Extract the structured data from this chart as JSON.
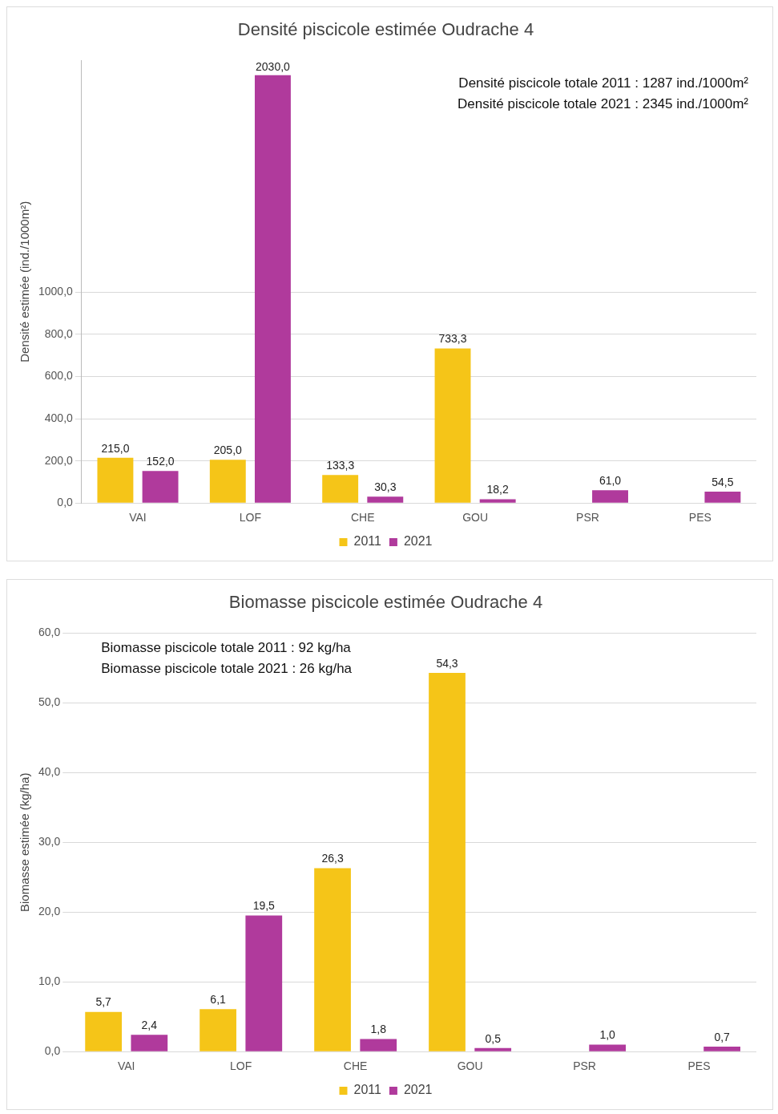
{
  "chart_data": [
    {
      "type": "bar",
      "title": "Densité piscicole estimée Oudrache 4",
      "ylabel": "Densité estimée (ind./1000m²)",
      "categories": [
        "VAI",
        "LOF",
        "CHE",
        "GOU",
        "PSR",
        "PES"
      ],
      "series": [
        {
          "name": "2011",
          "color": "#f5c518",
          "values": [
            215.0,
            205.0,
            133.3,
            733.3,
            null,
            null
          ],
          "value_labels": [
            "215,0",
            "205,0",
            "133,3",
            "733,3",
            null,
            null
          ]
        },
        {
          "name": "2021",
          "color": "#b03a9c",
          "values": [
            152.0,
            2030.0,
            30.3,
            18.2,
            61.0,
            54.5
          ],
          "value_labels": [
            "152,0",
            "2030,0",
            "30,3",
            "18,2",
            "61,0",
            "54,5"
          ]
        }
      ],
      "ylim": [
        0,
        2100
      ],
      "yticks": [
        {
          "value": 0,
          "label": "0,0"
        },
        {
          "value": 200,
          "label": "200,0"
        },
        {
          "value": 400,
          "label": "400,0"
        },
        {
          "value": 600,
          "label": "600,0"
        },
        {
          "value": 800,
          "label": "800,0"
        },
        {
          "value": 1000,
          "label": "1000,0"
        }
      ],
      "grid": "y",
      "legend": "bottom",
      "annotations": [
        "Densité piscicole totale 2011 : 1287 ind./1000m²",
        "Densité piscicole totale 2021 : 2345 ind./1000m²"
      ]
    },
    {
      "type": "bar",
      "title": "Biomasse piscicole estimée Oudrache 4",
      "ylabel": "Biomasse estimée (kg/ha)",
      "categories": [
        "VAI",
        "LOF",
        "CHE",
        "GOU",
        "PSR",
        "PES"
      ],
      "series": [
        {
          "name": "2011",
          "color": "#f5c518",
          "values": [
            5.7,
            6.1,
            26.3,
            54.3,
            null,
            null
          ],
          "value_labels": [
            "5,7",
            "6,1",
            "26,3",
            "54,3",
            null,
            null
          ]
        },
        {
          "name": "2021",
          "color": "#b03a9c",
          "values": [
            2.4,
            19.5,
            1.8,
            0.5,
            1.0,
            0.7
          ],
          "value_labels": [
            "2,4",
            "19,5",
            "1,8",
            "0,5",
            "1,0",
            "0,7"
          ]
        }
      ],
      "ylim": [
        0,
        60
      ],
      "yticks": [
        {
          "value": 0,
          "label": "0,0"
        },
        {
          "value": 10,
          "label": "10,0"
        },
        {
          "value": 20,
          "label": "20,0"
        },
        {
          "value": 30,
          "label": "30,0"
        },
        {
          "value": 40,
          "label": "40,0"
        },
        {
          "value": 50,
          "label": "50,0"
        },
        {
          "value": 60,
          "label": "60,0"
        }
      ],
      "grid": "y",
      "legend": "bottom",
      "annotations": [
        "Biomasse piscicole totale 2011 : 92 kg/ha",
        "Biomasse piscicole totale 2021 : 26 kg/ha"
      ]
    }
  ]
}
